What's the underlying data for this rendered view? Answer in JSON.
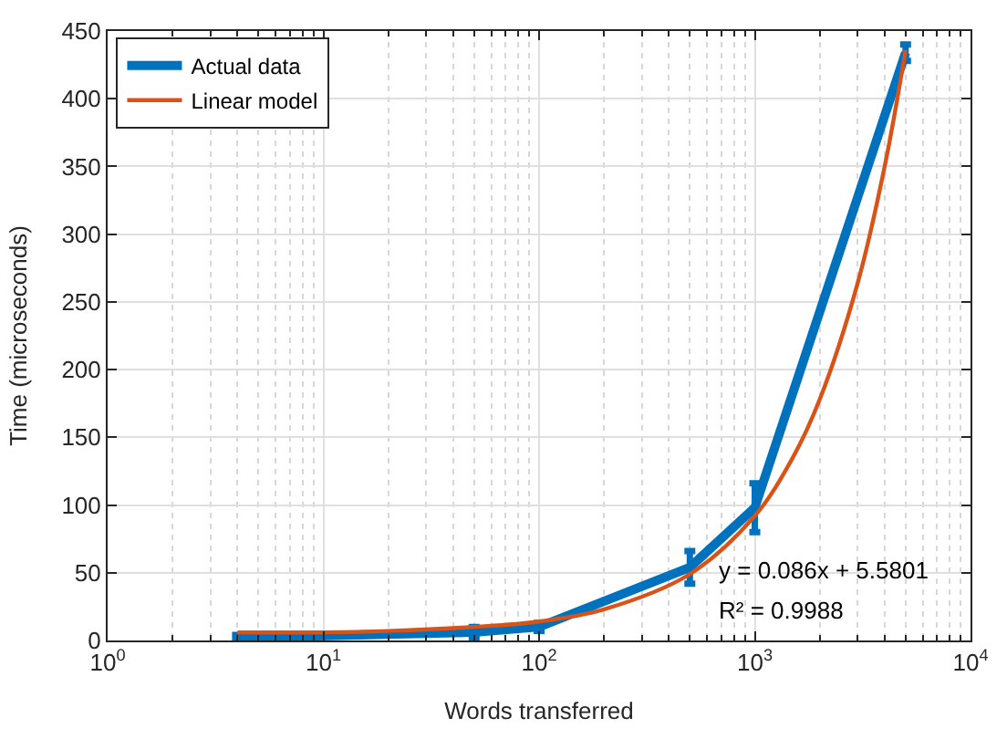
{
  "chart_data": {
    "type": "line",
    "xlabel": "Words transferred",
    "ylabel": "Time (microseconds)",
    "log": "x",
    "xlim": [
      1,
      10000
    ],
    "xticks": [
      {
        "value": 1,
        "label": "10$^{0}$"
      },
      {
        "value": 10,
        "label": "10$^{1}$"
      },
      {
        "value": 100,
        "label": "10$^{2}$"
      },
      {
        "value": 1000,
        "label": "10$^{3}$"
      },
      {
        "value": 10000,
        "label": "10$^{4}$"
      }
    ],
    "ylim": [
      0,
      450
    ],
    "yticks": [
      0,
      50,
      100,
      150,
      200,
      250,
      300,
      350,
      400,
      450
    ],
    "grid": true,
    "legend": "top left",
    "line_style": "solid",
    "annotations": [
      "y = 0.086x + 5.5801",
      "R² = 0.9988"
    ],
    "series": [
      {
        "name": "Actual data",
        "color": "#0072bd",
        "x": [
          4,
          50,
          100,
          500,
          1000,
          5000
        ],
        "values": [
          2,
          6,
          10,
          54,
          98,
          434
        ],
        "errors": [
          2,
          4,
          3,
          12,
          18,
          6
        ]
      },
      {
        "name": "Linear model",
        "color": "#d95319",
        "type": "line",
        "x": [
          4,
          10,
          20,
          50,
          100,
          200,
          500,
          1000,
          1500,
          2000,
          3000,
          4000,
          5000
        ],
        "values": [
          6,
          6,
          7,
          10,
          14,
          23,
          49,
          92,
          135,
          178,
          264,
          350,
          436
        ]
      }
    ]
  }
}
